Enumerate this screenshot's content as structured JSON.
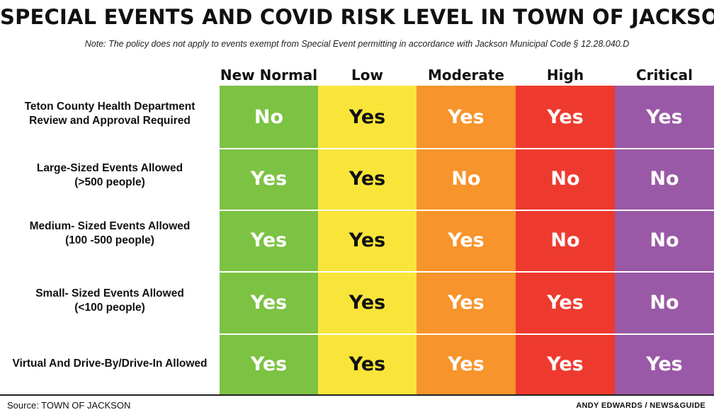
{
  "title": "SPECIAL EVENTS AND COVID RISK LEVEL IN TOWN OF JACKSON",
  "note": "Note: The policy does not apply to events exempt from Special Event permitting in accordance with Jackson Municipal Code § 12.28.040.D",
  "columns": [
    {
      "label": "New Normal",
      "color": "#7cc243"
    },
    {
      "label": "Low",
      "color": "#f9e53a"
    },
    {
      "label": "Moderate",
      "color": "#f7942b"
    },
    {
      "label": "High",
      "color": "#ee3a2e"
    },
    {
      "label": "Critical",
      "color": "#9a59a6"
    }
  ],
  "rows": [
    {
      "label_lines": [
        "Teton County Health Department",
        "Review and Approval Required"
      ],
      "values": [
        "No",
        "Yes",
        "Yes",
        "Yes",
        "Yes"
      ]
    },
    {
      "label_lines": [
        "Large-Sized Events Allowed",
        "(>500 people)"
      ],
      "values": [
        "Yes",
        "Yes",
        "No",
        "No",
        "No"
      ]
    },
    {
      "label_lines": [
        "Medium- Sized Events Allowed",
        "(100 -500 people)"
      ],
      "values": [
        "Yes",
        "Yes",
        "Yes",
        "No",
        "No"
      ]
    },
    {
      "label_lines": [
        "Small- Sized Events Allowed",
        "(<100 people)"
      ],
      "values": [
        "Yes",
        "Yes",
        "Yes",
        "Yes",
        "No"
      ]
    },
    {
      "label_lines": [
        "Virtual And Drive-By/Drive-In Allowed"
      ],
      "values": [
        "Yes",
        "Yes",
        "Yes",
        "Yes",
        "Yes"
      ]
    }
  ],
  "source": "Source: TOWN OF JACKSON",
  "credit": "ANDY EDWARDS / NEWS&GUIDE"
}
